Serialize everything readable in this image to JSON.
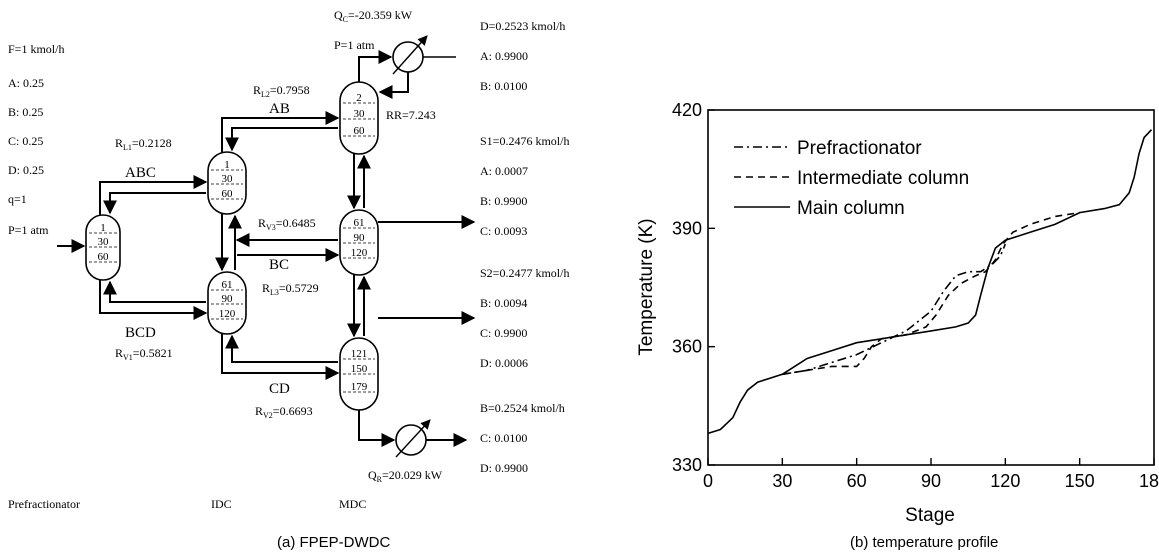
{
  "diagram": {
    "feed": {
      "F": "F=1 kmol/h",
      "A": "A: 0.25",
      "B": "B: 0.25",
      "C": "C: 0.25",
      "D": "D: 0.25",
      "q": "q=1",
      "P": "P=1 atm"
    },
    "top": {
      "Qc": "=-20.359 kW",
      "P": "P=1 atm",
      "D": "D=0.2523 kmol/h",
      "A": "A: 0.9900",
      "B": "B: 0.0100",
      "RR": "RR=7.243"
    },
    "s1": {
      "S1": "S1=0.2476 kmol/h",
      "A": "A: 0.0007",
      "B": "B: 0.9900",
      "C": "C: 0.0093"
    },
    "s2": {
      "S2": "S2=0.2477 kmol/h",
      "B": "B: 0.0094",
      "C": "C: 0.9900",
      "D": "D: 0.0006"
    },
    "bottom": {
      "B": "B=0.2524 kmol/h",
      "C": "C: 0.0100",
      "D": "D: 0.9900",
      "Qr": "=20.029 kW"
    },
    "split_ratios": {
      "RL2": "=0.7958",
      "RL1": "=0.2128",
      "RV3": "=0.6485",
      "RL3": "=0.5729",
      "RV1": "=0.5821",
      "RV2": "=0.6693"
    },
    "stream_labels": {
      "AB": "AB",
      "ABC": "ABC",
      "BC": "BC",
      "BCD": "BCD",
      "CD": "CD"
    },
    "columns": {
      "prefractionator": [
        "1",
        "30",
        "60"
      ],
      "idc_top": [
        "1",
        "30",
        "60"
      ],
      "idc_bottom": [
        "61",
        "90",
        "120"
      ],
      "mdc_top": [
        "2",
        "30",
        "60"
      ],
      "mdc_middle": [
        "61",
        "90",
        "120"
      ],
      "mdc_bottom": [
        "121",
        "150",
        "179"
      ]
    },
    "column_names": {
      "prefractionator": "Prefractionator",
      "idc": "IDC",
      "mdc": "MDC"
    }
  },
  "chart_data": {
    "type": "line",
    "xlabel": "Stage",
    "ylabel": "Temperature (K)",
    "xlim": [
      0,
      180
    ],
    "ylim": [
      330,
      420
    ],
    "x_ticks": [
      "0",
      "30",
      "60",
      "90",
      "120",
      "150",
      "180"
    ],
    "y_ticks": [
      "330",
      "360",
      "390",
      "420"
    ],
    "legend_position": "top-left",
    "grid": false,
    "series": [
      {
        "name": "Prefractionator",
        "style": "dashdot",
        "points": [
          [
            30,
            353
          ],
          [
            40,
            354
          ],
          [
            50,
            356
          ],
          [
            60,
            358
          ],
          [
            70,
            361
          ],
          [
            80,
            364
          ],
          [
            90,
            369
          ],
          [
            95,
            374
          ],
          [
            100,
            378
          ],
          [
            105,
            379
          ],
          [
            110,
            379
          ],
          [
            115,
            381
          ],
          [
            118,
            383
          ],
          [
            120,
            386
          ]
        ]
      },
      {
        "name": "Intermediate column",
        "style": "dashed",
        "points": [
          [
            30,
            353
          ],
          [
            40,
            354
          ],
          [
            50,
            355
          ],
          [
            60,
            355
          ],
          [
            63,
            357
          ],
          [
            66,
            360
          ],
          [
            70,
            362
          ],
          [
            80,
            363
          ],
          [
            88,
            365
          ],
          [
            92,
            368
          ],
          [
            97,
            373
          ],
          [
            102,
            376
          ],
          [
            108,
            378
          ],
          [
            112,
            379
          ],
          [
            116,
            382
          ],
          [
            119,
            386
          ],
          [
            123,
            389
          ],
          [
            130,
            391
          ],
          [
            140,
            393
          ],
          [
            150,
            394
          ]
        ]
      },
      {
        "name": "Main column",
        "style": "solid",
        "points": [
          [
            0,
            338
          ],
          [
            5,
            339
          ],
          [
            10,
            342
          ],
          [
            13,
            346
          ],
          [
            16,
            349
          ],
          [
            20,
            351
          ],
          [
            25,
            352
          ],
          [
            30,
            353
          ],
          [
            35,
            355
          ],
          [
            40,
            357
          ],
          [
            50,
            359
          ],
          [
            60,
            361
          ],
          [
            70,
            362
          ],
          [
            80,
            363
          ],
          [
            90,
            364
          ],
          [
            100,
            365
          ],
          [
            105,
            366
          ],
          [
            108,
            368
          ],
          [
            110,
            373
          ],
          [
            113,
            380
          ],
          [
            116,
            385
          ],
          [
            120,
            387
          ],
          [
            130,
            389
          ],
          [
            140,
            391
          ],
          [
            150,
            394
          ],
          [
            160,
            395
          ],
          [
            166,
            396
          ],
          [
            170,
            399
          ],
          [
            172,
            403
          ],
          [
            174,
            409
          ],
          [
            176,
            413
          ],
          [
            179,
            415
          ]
        ]
      }
    ]
  },
  "captions": {
    "a": "(a) FPEP-DWDC",
    "b": "(b) temperature profile"
  }
}
